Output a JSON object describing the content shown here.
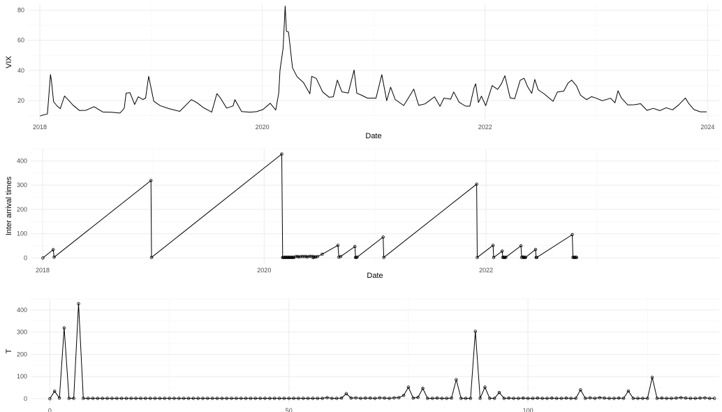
{
  "chart_data": [
    {
      "type": "line",
      "x_is_date": true,
      "xlabel": "Date",
      "ylabel": "VIX",
      "xlim": [
        "2017-11-23",
        "2024-02-08"
      ],
      "ylim": [
        7,
        84
      ],
      "xticks": [
        "2018-01-01",
        "2020-01-01",
        "2022-01-01",
        "2024-01-01"
      ],
      "xtick_labels": [
        "2018",
        "2020",
        "2022",
        "2024"
      ],
      "yticks": [
        20,
        40,
        60,
        80
      ],
      "ytick_labels": [
        "20",
        "40",
        "60",
        "80"
      ],
      "grid": true,
      "legend": "none",
      "points": false,
      "series": [
        {
          "x": [
            "2018-01-02",
            "2018-01-16",
            "2018-01-26",
            "2018-02-05",
            "2018-02-08",
            "2018-02-15",
            "2018-02-26",
            "2018-03-09",
            "2018-03-23",
            "2018-04-06",
            "2018-04-20",
            "2018-05-11",
            "2018-06-01",
            "2018-06-28",
            "2018-07-27",
            "2018-08-24",
            "2018-09-21",
            "2018-10-05",
            "2018-10-11",
            "2018-10-24",
            "2018-11-08",
            "2018-11-20",
            "2018-12-05",
            "2018-12-14",
            "2018-12-24",
            "2019-01-10",
            "2019-01-31",
            "2019-03-01",
            "2019-04-05",
            "2019-05-13",
            "2019-05-31",
            "2019-06-21",
            "2019-07-19",
            "2019-08-05",
            "2019-08-15",
            "2019-09-06",
            "2019-09-27",
            "2019-10-03",
            "2019-10-25",
            "2019-11-22",
            "2019-12-13",
            "2020-01-03",
            "2020-01-27",
            "2020-02-14",
            "2020-02-24",
            "2020-02-28",
            "2020-03-09",
            "2020-03-16",
            "2020-03-20",
            "2020-03-27",
            "2020-04-09",
            "2020-04-24",
            "2020-05-15",
            "2020-06-05",
            "2020-06-11",
            "2020-06-26",
            "2020-07-17",
            "2020-08-07",
            "2020-08-21",
            "2020-09-03",
            "2020-09-18",
            "2020-10-09",
            "2020-10-28",
            "2020-11-06",
            "2020-11-20",
            "2020-12-11",
            "2021-01-08",
            "2021-01-27",
            "2021-02-12",
            "2021-02-25",
            "2021-03-12",
            "2021-04-09",
            "2021-05-12",
            "2021-05-28",
            "2021-06-18",
            "2021-07-19",
            "2021-08-06",
            "2021-08-19",
            "2021-09-10",
            "2021-09-20",
            "2021-10-08",
            "2021-10-29",
            "2021-11-12",
            "2021-11-26",
            "2021-12-01",
            "2021-12-10",
            "2021-12-20",
            "2022-01-03",
            "2022-01-24",
            "2022-02-11",
            "2022-02-23",
            "2022-03-07",
            "2022-03-24",
            "2022-04-08",
            "2022-04-26",
            "2022-05-09",
            "2022-05-20",
            "2022-06-03",
            "2022-06-13",
            "2022-06-24",
            "2022-07-15",
            "2022-08-12",
            "2022-08-26",
            "2022-09-16",
            "2022-09-30",
            "2022-10-12",
            "2022-10-28",
            "2022-11-10",
            "2022-11-30",
            "2022-12-16",
            "2022-12-30",
            "2023-01-20",
            "2023-02-17",
            "2023-03-03",
            "2023-03-13",
            "2023-03-24",
            "2023-04-14",
            "2023-05-05",
            "2023-05-26",
            "2023-06-16",
            "2023-07-07",
            "2023-07-28",
            "2023-08-18",
            "2023-09-08",
            "2023-09-29",
            "2023-10-20",
            "2023-10-31",
            "2023-11-17",
            "2023-12-08",
            "2023-12-29"
          ],
          "y": [
            9.8,
            10.6,
            11.1,
            37.3,
            33.5,
            19.3,
            16.5,
            14.6,
            23.0,
            20.1,
            16.9,
            13.4,
            13.5,
            15.9,
            12.4,
            12.2,
            11.7,
            14.8,
            24.9,
            25.2,
            17.4,
            22.5,
            20.7,
            21.6,
            36.1,
            19.5,
            16.6,
            14.6,
            12.8,
            20.6,
            18.7,
            15.4,
            12.3,
            24.6,
            22.1,
            15.0,
            16.4,
            20.6,
            12.7,
            12.3,
            12.6,
            14.0,
            18.2,
            13.7,
            25.0,
            40.1,
            54.5,
            82.7,
            66.0,
            65.5,
            41.7,
            35.9,
            31.9,
            24.5,
            36.1,
            34.7,
            25.7,
            22.2,
            22.5,
            33.6,
            25.8,
            25.0,
            40.3,
            24.9,
            23.7,
            21.6,
            21.6,
            37.2,
            19.9,
            28.9,
            20.7,
            16.7,
            27.6,
            16.8,
            17.8,
            22.5,
            16.2,
            21.6,
            20.9,
            25.7,
            18.8,
            16.3,
            16.3,
            28.6,
            31.1,
            18.7,
            22.9,
            16.6,
            29.9,
            27.4,
            31.0,
            36.5,
            21.7,
            21.2,
            33.5,
            34.8,
            29.4,
            24.8,
            34.0,
            27.2,
            24.2,
            19.5,
            25.6,
            26.3,
            31.6,
            33.6,
            29.7,
            23.5,
            20.6,
            22.6,
            21.7,
            19.9,
            21.5,
            18.5,
            26.5,
            21.7,
            17.1,
            17.2,
            17.9,
            13.5,
            14.8,
            13.3,
            15.2,
            13.8,
            17.3,
            21.7,
            18.1,
            14.0,
            12.5,
            12.5
          ]
        }
      ]
    },
    {
      "type": "line",
      "x_is_date": true,
      "xlabel": "Date",
      "ylabel": "Inter arrival times",
      "xlim": [
        "2017-11-23",
        "2024-02-08"
      ],
      "ylim": [
        -22,
        450
      ],
      "xticks": [
        "2018-01-01",
        "2020-01-01",
        "2022-01-01"
      ],
      "xtick_labels": [
        "2018",
        "2020",
        "2022"
      ],
      "yticks": [
        0,
        100,
        200,
        300,
        400
      ],
      "ytick_labels": [
        "0",
        "100",
        "200",
        "300",
        "400"
      ],
      "grid": true,
      "legend": "none",
      "points": true,
      "series": [
        {
          "x": [
            "2018-01-02",
            "2018-02-05",
            "2018-02-08",
            "2018-12-24",
            "2018-12-26",
            "2020-02-28",
            "2020-03-02",
            "2020-03-04",
            "2020-03-06",
            "2020-03-09",
            "2020-03-11",
            "2020-03-13",
            "2020-03-16",
            "2020-03-18",
            "2020-03-20",
            "2020-03-23",
            "2020-03-25",
            "2020-03-27",
            "2020-03-30",
            "2020-04-01",
            "2020-04-03",
            "2020-04-06",
            "2020-04-08",
            "2020-04-14",
            "2020-04-20",
            "2020-04-24",
            "2020-04-30",
            "2020-05-06",
            "2020-05-12",
            "2020-05-18",
            "2020-05-22",
            "2020-05-29",
            "2020-06-04",
            "2020-06-10",
            "2020-06-11",
            "2020-06-15",
            "2020-06-19",
            "2020-06-25",
            "2020-07-10",
            "2020-08-31",
            "2020-09-03",
            "2020-09-09",
            "2020-10-26",
            "2020-10-28",
            "2020-10-30",
            "2020-11-02",
            "2021-01-27",
            "2021-01-29",
            "2021-12-01",
            "2021-12-03",
            "2022-01-24",
            "2022-01-26",
            "2022-02-23",
            "2022-02-25",
            "2022-02-28",
            "2022-03-02",
            "2022-03-04",
            "2022-03-07",
            "2022-04-26",
            "2022-04-28",
            "2022-05-02",
            "2022-05-04",
            "2022-05-06",
            "2022-05-09",
            "2022-05-11",
            "2022-06-13",
            "2022-06-15",
            "2022-06-17",
            "2022-10-12",
            "2022-10-14",
            "2022-10-17",
            "2022-10-19",
            "2022-10-21",
            "2022-10-24",
            "2022-10-26"
          ],
          "y": [
            0,
            34,
            3,
            319,
            2,
            428,
            2,
            2,
            2,
            3,
            2,
            2,
            3,
            2,
            2,
            3,
            2,
            2,
            3,
            2,
            2,
            3,
            2,
            6,
            6,
            4,
            6,
            6,
            6,
            6,
            4,
            7,
            6,
            6,
            1,
            4,
            4,
            6,
            15,
            52,
            3,
            6,
            47,
            2,
            2,
            3,
            86,
            2,
            304,
            2,
            52,
            2,
            28,
            2,
            3,
            2,
            2,
            3,
            50,
            2,
            4,
            2,
            2,
            3,
            2,
            35,
            2,
            2,
            96,
            2,
            3,
            2,
            2,
            3,
            2
          ]
        }
      ]
    },
    {
      "type": "line",
      "x_is_date": false,
      "xlabel": "",
      "ylabel": "T",
      "xlim": [
        -4,
        140
      ],
      "ylim": [
        -22,
        450
      ],
      "xticks": [
        0,
        50,
        100
      ],
      "xtick_labels": [
        "0",
        "50",
        "100"
      ],
      "yticks": [
        0,
        100,
        200,
        300,
        400
      ],
      "ytick_labels": [
        "0",
        "100",
        "200",
        "300",
        "400"
      ],
      "grid": true,
      "legend": "none",
      "points": true,
      "series": [
        {
          "x": [
            0,
            1,
            2,
            3,
            4,
            5,
            6,
            7,
            8,
            9,
            10,
            11,
            12,
            13,
            14,
            15,
            16,
            17,
            18,
            19,
            20,
            21,
            22,
            23,
            24,
            25,
            26,
            27,
            28,
            29,
            30,
            31,
            32,
            33,
            34,
            35,
            36,
            37,
            38,
            39,
            40,
            41,
            42,
            43,
            44,
            45,
            46,
            47,
            48,
            49,
            50,
            51,
            52,
            53,
            54,
            55,
            56,
            57,
            58,
            59,
            60,
            61,
            62,
            63,
            64,
            65,
            66,
            67,
            68,
            69,
            70,
            71,
            72,
            73,
            74,
            75,
            76,
            77,
            78,
            79,
            80,
            81,
            82,
            83,
            84,
            85,
            86,
            87,
            88,
            89,
            90,
            91,
            92,
            93,
            94,
            95,
            96,
            97,
            98,
            99,
            100,
            101,
            102,
            103,
            104,
            105,
            106,
            107,
            108,
            109,
            110,
            111,
            112,
            113,
            114,
            115,
            116,
            117,
            118,
            119,
            120,
            121,
            122,
            123,
            124,
            125,
            126,
            127,
            128,
            129,
            130,
            131,
            132,
            133,
            134,
            135,
            136,
            137,
            138,
            139
          ],
          "y": [
            0,
            34,
            3,
            319,
            2,
            2,
            428,
            2,
            2,
            2,
            2,
            2,
            2,
            2,
            2,
            2,
            2,
            2,
            2,
            2,
            2,
            2,
            2,
            2,
            2,
            2,
            2,
            2,
            2,
            2,
            2,
            2,
            2,
            2,
            2,
            2,
            2,
            2,
            2,
            2,
            2,
            2,
            2,
            2,
            2,
            2,
            2,
            2,
            2,
            2,
            2,
            2,
            2,
            2,
            2,
            2,
            2,
            2,
            5,
            2,
            2,
            3,
            23,
            3,
            4,
            2,
            3,
            3,
            2,
            4,
            3,
            2,
            4,
            5,
            15,
            52,
            3,
            6,
            47,
            2,
            2,
            3,
            2,
            2,
            3,
            86,
            2,
            2,
            2,
            304,
            2,
            52,
            2,
            2,
            28,
            2,
            3,
            2,
            2,
            3,
            2,
            2,
            3,
            2,
            2,
            3,
            2,
            2,
            3,
            2,
            2,
            40,
            2,
            4,
            2,
            5,
            3,
            2,
            2,
            3,
            2,
            35,
            2,
            2,
            2,
            2,
            96,
            2,
            3,
            2,
            2,
            3,
            5,
            3,
            2,
            2,
            3,
            4,
            2,
            2
          ]
        }
      ]
    }
  ]
}
